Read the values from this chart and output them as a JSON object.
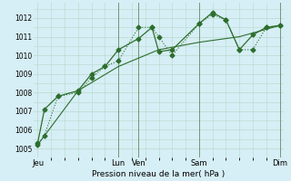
{
  "xlabel": "Pression niveau de la mer( hPa )",
  "ylim": [
    1004.5,
    1012.8
  ],
  "yticks": [
    1005,
    1006,
    1007,
    1008,
    1009,
    1010,
    1011,
    1012
  ],
  "bg_color": "#d6eef5",
  "grid_color": "#b8d9cc",
  "line_color": "#2d6e2d",
  "vline_color": "#4a7a4a",
  "xtick_labels": [
    "Jeu",
    "Lun",
    "Ven",
    "Sam",
    "Dim"
  ],
  "xtick_positions": [
    0,
    6,
    7.5,
    12,
    18
  ],
  "x_vlines": [
    6,
    7.5,
    12,
    18
  ],
  "xlim": [
    -0.3,
    18.3
  ],
  "series1_x": [
    0,
    0.5,
    1.5,
    3,
    4,
    5,
    6,
    7.5,
    8.5,
    9,
    10,
    12,
    13,
    14,
    15,
    16,
    17,
    18
  ],
  "series1_y": [
    1005.2,
    1005.7,
    1007.8,
    1008.0,
    1008.8,
    1009.4,
    1009.7,
    1011.5,
    1011.5,
    1011.0,
    1010.0,
    1011.7,
    1012.2,
    1011.9,
    1010.3,
    1010.3,
    1011.5,
    1011.6
  ],
  "series2_x": [
    0,
    0.5,
    1.5,
    3,
    4,
    5,
    6,
    7.5,
    8.5,
    9,
    10,
    12,
    13,
    14,
    15,
    16,
    17,
    18
  ],
  "series2_y": [
    1005.3,
    1007.1,
    1007.8,
    1008.1,
    1009.0,
    1009.4,
    1010.3,
    1010.9,
    1011.5,
    1010.2,
    1010.3,
    1011.7,
    1012.3,
    1011.9,
    1010.3,
    1011.1,
    1011.5,
    1011.6
  ],
  "series3_x": [
    0,
    3,
    6,
    9,
    12,
    15,
    18
  ],
  "series3_y": [
    1005.2,
    1008.1,
    1009.4,
    1010.3,
    1010.7,
    1011.0,
    1011.6
  ]
}
